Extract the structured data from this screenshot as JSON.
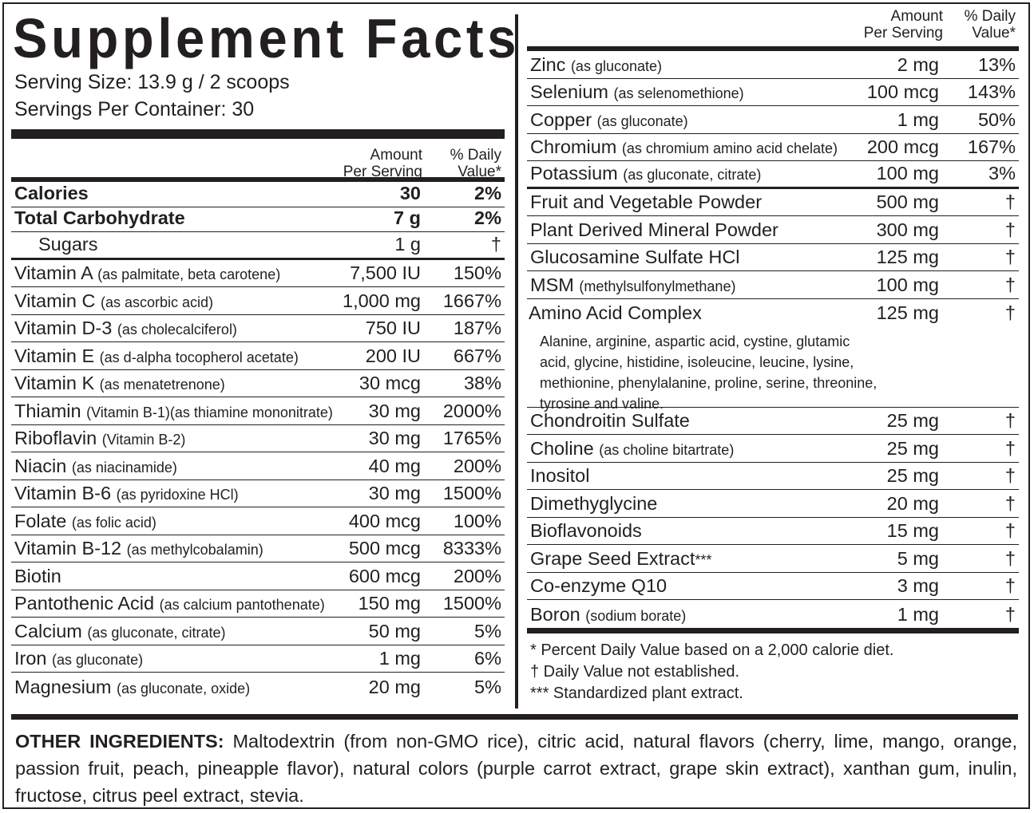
{
  "title": "Supplement Facts",
  "serving_size": "Serving Size: 13.9 g / 2 scoops",
  "servings_per_container": "Servings Per Container: 30",
  "header": {
    "amount": "Amount\nPer Serving",
    "daily_value": "% Daily\nValue*"
  },
  "left_bold_rows": [
    {
      "name": "Calories",
      "amount": "30",
      "percent": "2%"
    },
    {
      "name": "Total Carbohydrate",
      "amount": "7 g",
      "percent": "2%"
    }
  ],
  "sugars": {
    "name": "Sugars",
    "amount": "1 g",
    "percent": "†"
  },
  "left_rows": [
    {
      "name": "Vitamin A",
      "note": "(as palmitate, beta carotene)",
      "amount": "7,500 IU",
      "percent": "150%"
    },
    {
      "name": "Vitamin C",
      "note": "(as ascorbic acid)",
      "amount": "1,000 mg",
      "percent": "1667%"
    },
    {
      "name": "Vitamin D-3",
      "note": "(as cholecalciferol)",
      "amount": "750 IU",
      "percent": "187%"
    },
    {
      "name": "Vitamin E",
      "note": "(as d-alpha tocopherol acetate)",
      "amount": "200 IU",
      "percent": "667%"
    },
    {
      "name": "Vitamin K",
      "note": "(as menatetrenone)",
      "amount": "30 mcg",
      "percent": "38%"
    },
    {
      "name": "Thiamin",
      "note": "(Vitamin B-1)(as thiamine mononitrate)",
      "amount": "30 mg",
      "percent": "2000%"
    },
    {
      "name": "Riboflavin",
      "note": "(Vitamin B-2)",
      "amount": "30 mg",
      "percent": "1765%"
    },
    {
      "name": "Niacin",
      "note": "(as niacinamide)",
      "amount": "40 mg",
      "percent": "200%"
    },
    {
      "name": "Vitamin B-6",
      "note": "(as pyridoxine HCl)",
      "amount": "30 mg",
      "percent": "1500%"
    },
    {
      "name": "Folate",
      "note": "(as folic acid)",
      "amount": "400 mcg",
      "percent": "100%"
    },
    {
      "name": "Vitamin B-12",
      "note": "(as methylcobalamin)",
      "amount": "500 mcg",
      "percent": "8333%"
    },
    {
      "name": "Biotin",
      "note": "",
      "amount": "600 mcg",
      "percent": "200%"
    },
    {
      "name": "Pantothenic Acid",
      "note": "(as calcium pantothenate)",
      "amount": "150 mg",
      "percent": "1500%"
    },
    {
      "name": "Calcium",
      "note": "(as gluconate, citrate)",
      "amount": "50 mg",
      "percent": "5%"
    },
    {
      "name": "Iron",
      "note": "(as gluconate)",
      "amount": "1 mg",
      "percent": "6%"
    },
    {
      "name": "Magnesium",
      "note": "(as gluconate, oxide)",
      "amount": "20 mg",
      "percent": "5%"
    }
  ],
  "right_minerals": [
    {
      "name": "Zinc",
      "note": "(as gluconate)",
      "amount": "2 mg",
      "percent": "13%"
    },
    {
      "name": "Selenium",
      "note": "(as selenomethione)",
      "amount": "100 mcg",
      "percent": "143%"
    },
    {
      "name": "Copper",
      "note": "(as gluconate)",
      "amount": "1 mg",
      "percent": "50%"
    },
    {
      "name": "Chromium",
      "note": "(as chromium amino acid chelate)",
      "amount": "200 mcg",
      "percent": "167%"
    },
    {
      "name": "Potassium",
      "note": "(as gluconate, citrate)",
      "amount": "100 mg",
      "percent": "3%"
    }
  ],
  "right_others_a": [
    {
      "name": "Fruit and Vegetable Powder",
      "note": "",
      "amount": "500 mg",
      "percent": "†"
    },
    {
      "name": "Plant Derived Mineral Powder",
      "note": "",
      "amount": "300 mg",
      "percent": "†"
    },
    {
      "name": "Glucosamine Sulfate HCl",
      "note": "",
      "amount": "125 mg",
      "percent": "†"
    },
    {
      "name": "MSM",
      "note": "(methylsulfonylmethane)",
      "amount": "100 mg",
      "percent": "†"
    }
  ],
  "amino": {
    "name": "Amino Acid Complex",
    "amount": "125 mg",
    "percent": "†",
    "description": "Alanine, arginine, aspartic acid, cystine, glutamic acid, glycine, histidine, isoleucine, leucine, lysine, methionine, phenylalanine, proline, serine, threonine, tyrosine and valine."
  },
  "right_others_b": [
    {
      "name": "Chondroitin Sulfate",
      "note": "",
      "amount": "25 mg",
      "percent": "†"
    },
    {
      "name": "Choline",
      "note": "(as choline bitartrate)",
      "amount": "25 mg",
      "percent": "†"
    },
    {
      "name": "Inositol",
      "note": "",
      "amount": "25 mg",
      "percent": "†"
    },
    {
      "name": "Dimethyglycine",
      "note": "",
      "amount": "20 mg",
      "percent": "†"
    },
    {
      "name": "Bioflavonoids",
      "note": "",
      "amount": "15 mg",
      "percent": "†"
    },
    {
      "name": "Grape Seed Extract",
      "note": "***",
      "amount": "5 mg",
      "percent": "†"
    },
    {
      "name": "Co-enzyme Q10",
      "note": "",
      "amount": "3 mg",
      "percent": "†"
    },
    {
      "name": "Boron",
      "note": "(sodium borate)",
      "amount": "1 mg",
      "percent": "†"
    }
  ],
  "footnotes": [
    "* Percent Daily Value based on a 2,000 calorie diet.",
    "† Daily Value not established.",
    "*** Standardized plant extract."
  ],
  "other_ingredients": {
    "label": "OTHER INGREDIENTS:",
    "text": " Maltodextrin (from non-GMO rice), citric acid, natural flavors (cherry, lime, mango, orange, passion fruit, peach, pineapple flavor), natural colors (purple carrot extract, grape skin extract), xanthan gum, inulin, fructose, citrus peel extract, stevia."
  }
}
